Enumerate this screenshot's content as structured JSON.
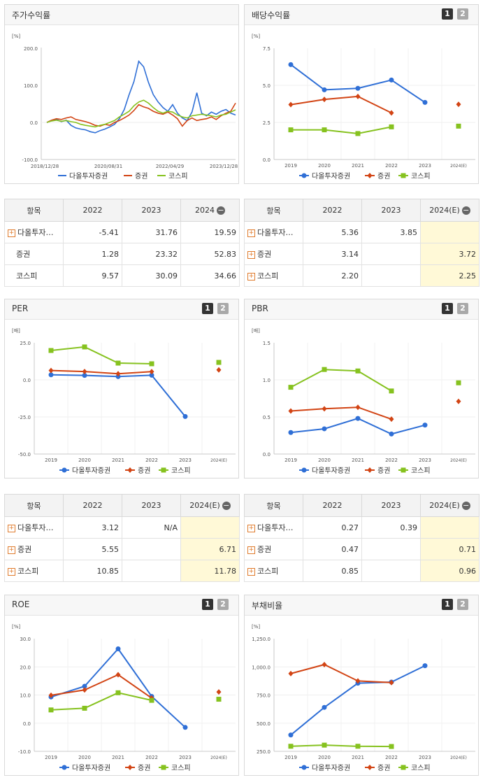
{
  "legend": {
    "a": "다올투자증권",
    "b": "증권",
    "c": "코스피"
  },
  "colors": {
    "a": "#2f6fd6",
    "b": "#d24414",
    "c": "#86c21f"
  },
  "tab_labels": {
    "one": "1",
    "two": "2"
  },
  "price_chart": {
    "title": "주가수익률",
    "unit": "[%]",
    "y_ticks": [
      "200.0",
      "100.0",
      "0.0",
      "-100.0"
    ],
    "x_ticks": [
      "2018/12/28",
      "2020/08/31",
      "2022/04/29",
      "2023/12/28"
    ]
  },
  "charts": {
    "div": {
      "title": "배당수익률",
      "unit": "[%]",
      "y_ticks": [
        "7.5",
        "5.0",
        "2.5",
        "0.0"
      ],
      "x_ticks": [
        "2019",
        "2020",
        "2021",
        "2022",
        "2023",
        "2024(E)"
      ]
    },
    "per": {
      "title": "PER",
      "unit": "[배]",
      "y_ticks": [
        "25.0",
        "0.0",
        "-25.0",
        "-50.0"
      ],
      "x_ticks": [
        "2019",
        "2020",
        "2021",
        "2022",
        "2023",
        "2024(E)"
      ]
    },
    "pbr": {
      "title": "PBR",
      "unit": "[배]",
      "y_ticks": [
        "1.5",
        "1.0",
        "0.5",
        "0.0"
      ],
      "x_ticks": [
        "2019",
        "2020",
        "2021",
        "2022",
        "2023",
        "2024(E)"
      ]
    },
    "roe": {
      "title": "ROE",
      "unit": "[%]",
      "y_ticks": [
        "30.0",
        "20.0",
        "10.0",
        "0.0",
        "-10.0"
      ],
      "x_ticks": [
        "2019",
        "2020",
        "2021",
        "2022",
        "2023",
        "2024(E)"
      ]
    },
    "debt": {
      "title": "부채비율",
      "unit": "[%]",
      "y_ticks": [
        "1,250.0",
        "1,000.0",
        "750.0",
        "500.0",
        "250.0"
      ],
      "x_ticks": [
        "2019",
        "2020",
        "2021",
        "2022",
        "2023",
        "2024(E)"
      ]
    }
  },
  "tables": {
    "price": {
      "header": [
        "항목",
        "2022",
        "2023",
        "2024"
      ],
      "rows": [
        {
          "name": "다올투자…",
          "v": [
            "-5.41",
            "31.76",
            "19.59"
          ]
        },
        {
          "name": "증권",
          "v": [
            "1.28",
            "23.32",
            "52.83"
          ]
        },
        {
          "name": "코스피",
          "v": [
            "9.57",
            "30.09",
            "34.66"
          ]
        }
      ]
    },
    "div": {
      "header": [
        "항목",
        "2022",
        "2023",
        "2024(E)"
      ],
      "rows": [
        {
          "name": "다올투자…",
          "v": [
            "5.36",
            "3.85",
            ""
          ]
        },
        {
          "name": "증권",
          "v": [
            "3.14",
            "",
            "3.72"
          ]
        },
        {
          "name": "코스피",
          "v": [
            "2.20",
            "",
            "2.25"
          ]
        }
      ]
    },
    "per": {
      "header": [
        "항목",
        "2022",
        "2023",
        "2024(E)"
      ],
      "rows": [
        {
          "name": "다올투자…",
          "v": [
            "3.12",
            "N/A",
            ""
          ]
        },
        {
          "name": "증권",
          "v": [
            "5.55",
            "",
            "6.71"
          ]
        },
        {
          "name": "코스피",
          "v": [
            "10.85",
            "",
            "11.78"
          ]
        }
      ]
    },
    "pbr": {
      "header": [
        "항목",
        "2022",
        "2023",
        "2024(E)"
      ],
      "rows": [
        {
          "name": "다올투자…",
          "v": [
            "0.27",
            "0.39",
            ""
          ]
        },
        {
          "name": "증권",
          "v": [
            "0.47",
            "",
            "0.71"
          ]
        },
        {
          "name": "코스피",
          "v": [
            "0.85",
            "",
            "0.96"
          ]
        }
      ]
    }
  },
  "chart_data": [
    {
      "type": "line",
      "title": "주가수익률",
      "ylim": [
        -100,
        200
      ],
      "x_labels": [
        "2018/12/28",
        "2020/08/31",
        "2022/04/29",
        "2023/12/28"
      ],
      "series": [
        {
          "name": "다올투자증권",
          "values": [
            0,
            5,
            8,
            2,
            6,
            -8,
            -15,
            -18,
            -20,
            -25,
            -28,
            -22,
            -18,
            -12,
            -5,
            10,
            35,
            75,
            110,
            165,
            150,
            108,
            75,
            55,
            40,
            30,
            48,
            25,
            12,
            5,
            28,
            80,
            25,
            18,
            28,
            22,
            30,
            35,
            25,
            20
          ]
        },
        {
          "name": "증권",
          "values": [
            0,
            6,
            10,
            8,
            12,
            15,
            8,
            5,
            2,
            -2,
            -8,
            -10,
            -5,
            -8,
            0,
            5,
            12,
            20,
            32,
            48,
            42,
            38,
            30,
            25,
            22,
            28,
            20,
            10,
            -10,
            5,
            12,
            5,
            8,
            10,
            15,
            8,
            18,
            25,
            30,
            52
          ]
        },
        {
          "name": "코스피",
          "values": [
            0,
            4,
            6,
            3,
            5,
            2,
            0,
            -5,
            -8,
            -10,
            -12,
            -8,
            -5,
            0,
            5,
            15,
            22,
            30,
            45,
            55,
            60,
            52,
            40,
            30,
            25,
            30,
            28,
            20,
            15,
            12,
            18,
            20,
            22,
            20,
            18,
            15,
            20,
            22,
            28,
            34
          ]
        }
      ]
    },
    {
      "type": "line",
      "title": "배당수익률",
      "ylim": [
        0,
        7.5
      ],
      "categories": [
        "2019",
        "2020",
        "2021",
        "2022",
        "2023",
        "2024(E)"
      ],
      "series": [
        {
          "name": "다올투자증권",
          "values": [
            6.4,
            4.7,
            4.8,
            5.36,
            3.85,
            null
          ]
        },
        {
          "name": "증권",
          "values": [
            3.7,
            4.05,
            4.25,
            3.14,
            null,
            3.72
          ]
        },
        {
          "name": "코스피",
          "values": [
            2.0,
            2.0,
            1.75,
            2.2,
            null,
            2.25
          ]
        }
      ]
    },
    {
      "type": "line",
      "title": "PER",
      "ylim": [
        -50,
        25
      ],
      "categories": [
        "2019",
        "2020",
        "2021",
        "2022",
        "2023",
        "2024(E)"
      ],
      "series": [
        {
          "name": "다올투자증권",
          "values": [
            3.4,
            3.0,
            2.2,
            3.12,
            -24.7,
            null
          ]
        },
        {
          "name": "증권",
          "values": [
            6.3,
            5.6,
            4.1,
            5.55,
            null,
            6.71
          ]
        },
        {
          "name": "코스피",
          "values": [
            19.8,
            22.2,
            11.3,
            10.85,
            null,
            11.78
          ]
        }
      ]
    },
    {
      "type": "line",
      "title": "PBR",
      "ylim": [
        0,
        1.5
      ],
      "categories": [
        "2019",
        "2020",
        "2021",
        "2022",
        "2023",
        "2024(E)"
      ],
      "series": [
        {
          "name": "다올투자증권",
          "values": [
            0.29,
            0.34,
            0.48,
            0.27,
            0.39,
            null
          ]
        },
        {
          "name": "증권",
          "values": [
            0.58,
            0.61,
            0.63,
            0.47,
            null,
            0.71
          ]
        },
        {
          "name": "코스피",
          "values": [
            0.9,
            1.14,
            1.12,
            0.85,
            null,
            0.96
          ]
        }
      ]
    },
    {
      "type": "line",
      "title": "ROE",
      "ylim": [
        -10,
        30
      ],
      "categories": [
        "2019",
        "2020",
        "2021",
        "2022",
        "2023",
        "2024(E)"
      ],
      "series": [
        {
          "name": "다올투자증권",
          "values": [
            9.3,
            13.1,
            26.4,
            9.5,
            -1.5,
            null
          ]
        },
        {
          "name": "증권",
          "values": [
            9.9,
            11.8,
            17.2,
            8.9,
            null,
            11.1
          ]
        },
        {
          "name": "코스피",
          "values": [
            4.7,
            5.3,
            10.8,
            8.1,
            null,
            8.5
          ]
        }
      ]
    },
    {
      "type": "line",
      "title": "부채비율",
      "ylim": [
        250,
        1250
      ],
      "categories": [
        "2019",
        "2020",
        "2021",
        "2022",
        "2023",
        "2024(E)"
      ],
      "series": [
        {
          "name": "다올투자증권",
          "values": [
            395,
            640,
            855,
            865,
            1010,
            null
          ]
        },
        {
          "name": "증권",
          "values": [
            940,
            1020,
            875,
            860,
            null,
            null
          ]
        },
        {
          "name": "코스피",
          "values": [
            295,
            305,
            295,
            293,
            null,
            null
          ]
        }
      ]
    }
  ]
}
